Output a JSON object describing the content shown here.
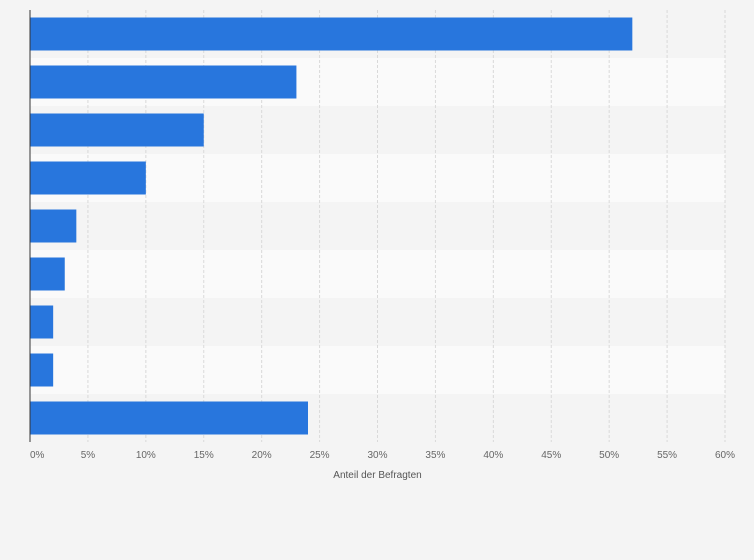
{
  "chart_data": {
    "type": "bar",
    "orientation": "horizontal",
    "categories": [
      "",
      "",
      "",
      "",
      "",
      "",
      "",
      "",
      ""
    ],
    "values": [
      52,
      23,
      15,
      10,
      4,
      3,
      2,
      2,
      24
    ],
    "xlabel": "Anteil der Befragten",
    "ylabel": "",
    "xlim": [
      0,
      60
    ],
    "xticks": [
      0,
      5,
      10,
      15,
      20,
      25,
      30,
      35,
      40,
      45,
      50,
      55,
      60
    ],
    "xtick_labels": [
      "0%",
      "5%",
      "10%",
      "15%",
      "20%",
      "25%",
      "30%",
      "35%",
      "40%",
      "45%",
      "50%",
      "55%",
      "60%"
    ],
    "grid": true,
    "bar_color": "#2876dd",
    "band_colors": [
      "#f4f4f4",
      "#fafafa"
    ],
    "gridline_color": "#d9d9d9",
    "axis_color": "#333333"
  }
}
